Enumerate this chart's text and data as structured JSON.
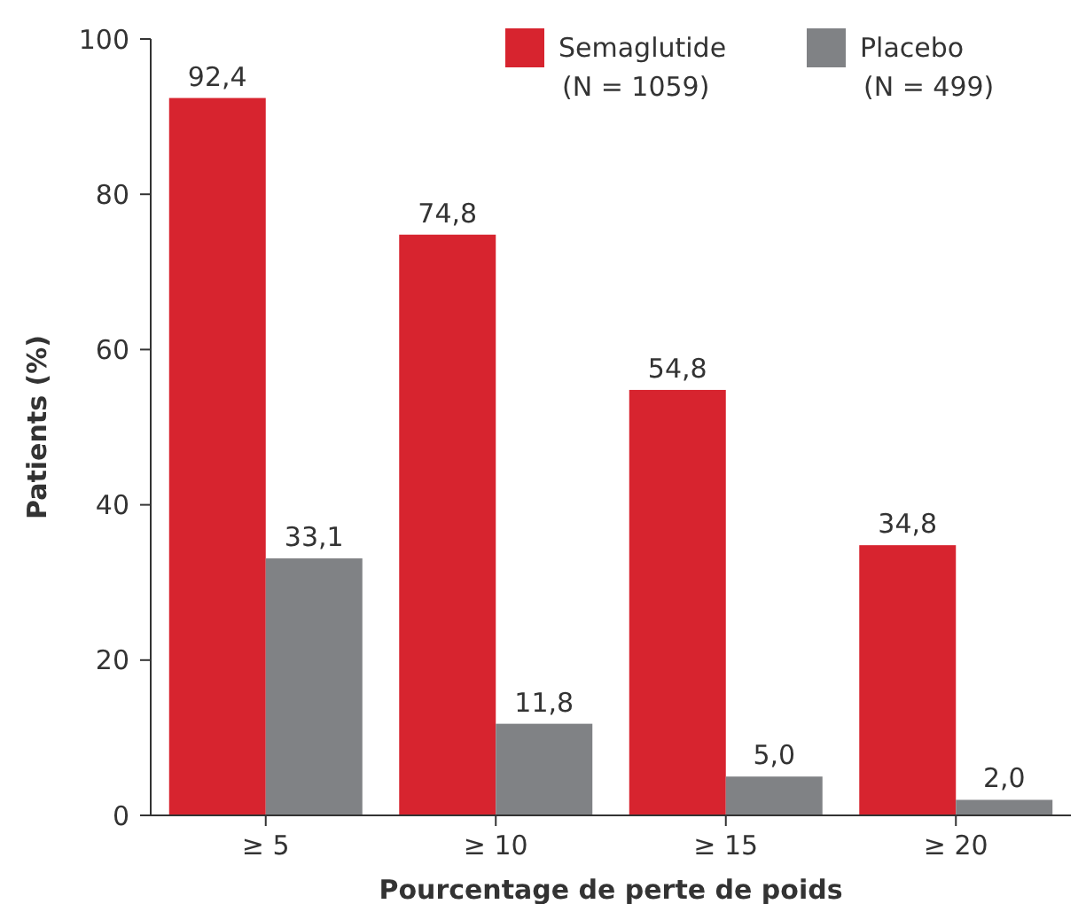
{
  "chart_data": {
    "type": "bar",
    "xlabel": "Pourcentage de perte de poids",
    "ylabel": "Patients (%)",
    "categories": [
      "≥ 5",
      "≥ 10",
      "≥ 15",
      "≥ 20"
    ],
    "series": [
      {
        "name": "Semaglutide (N = 1059)",
        "color": "#d7242f",
        "values": [
          92.4,
          74.8,
          54.8,
          34.8
        ],
        "value_labels": [
          "92,4",
          "74,8",
          "54,8",
          "34,8"
        ]
      },
      {
        "name": "Placebo (N = 499)",
        "color": "#808285",
        "values": [
          33.1,
          11.8,
          5.0,
          2.0
        ],
        "value_labels": [
          "33,1",
          "11,8",
          "5,0",
          "2,0"
        ]
      }
    ],
    "ylim": [
      0,
      100
    ],
    "yticks": [
      0,
      20,
      40,
      60,
      80,
      100
    ],
    "grid": false,
    "legend": "top right"
  }
}
